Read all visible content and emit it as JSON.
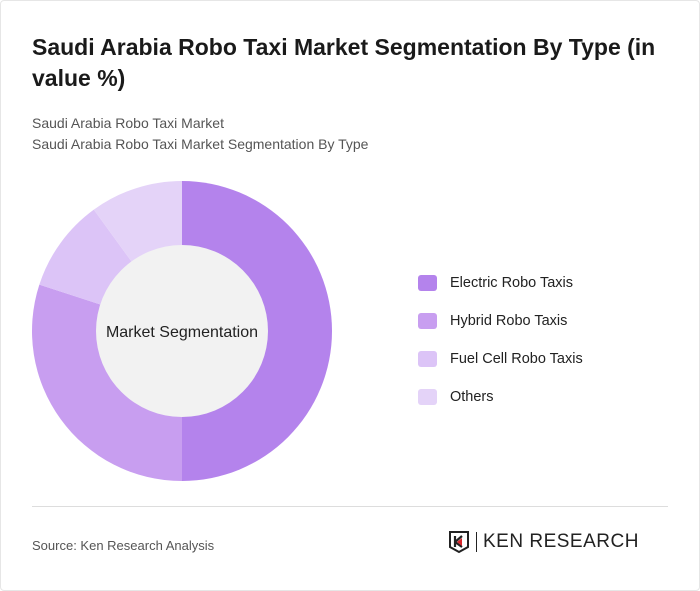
{
  "title": "Saudi Arabia Robo Taxi Market Segmentation By Type (in value %)",
  "subtitle_1": "Saudi Arabia Robo Taxi Market",
  "subtitle_2": "Saudi Arabia Robo Taxi Market Segmentation By Type",
  "chart_data": {
    "type": "pie",
    "donut": true,
    "center_label": "Market Segmentation",
    "categories": [
      "Electric Robo Taxis",
      "Hybrid Robo Taxis",
      "Fuel Cell Robo Taxis",
      "Others"
    ],
    "values": [
      50,
      30,
      10,
      10
    ],
    "colors": [
      "#b483ec",
      "#c89ef0",
      "#dcc4f7",
      "#e4d3f8"
    ],
    "legend_position": "right"
  },
  "source": "Source: Ken Research Analysis",
  "logo_text": "KEN RESEARCH"
}
